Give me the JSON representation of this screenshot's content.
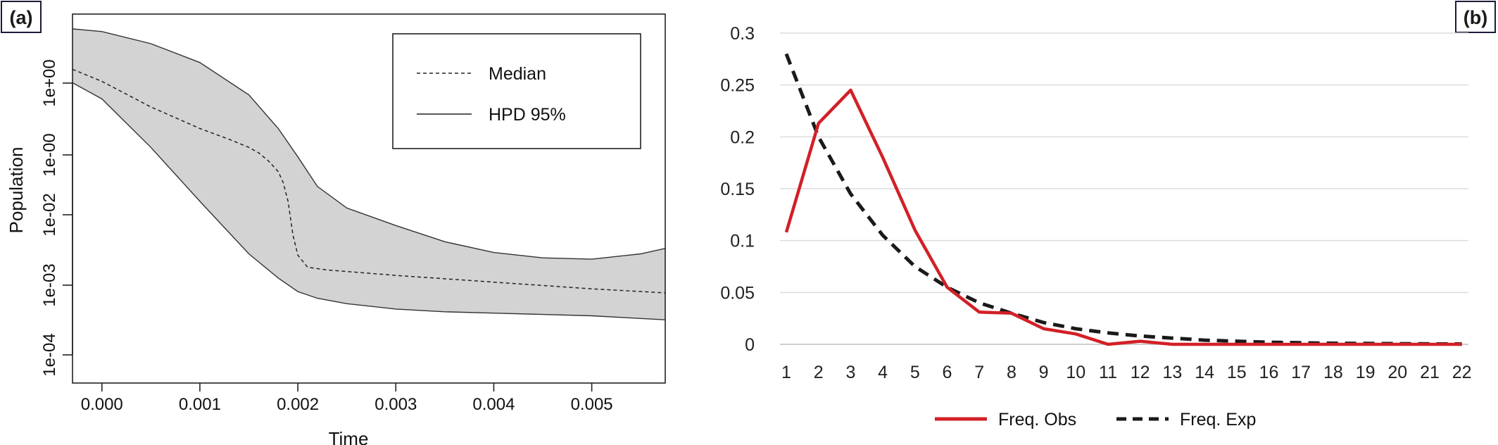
{
  "chart_data": [
    {
      "panel": "(a)",
      "type": "area",
      "xlabel": "Time",
      "ylabel": "Population",
      "x_ticks": [
        "0.000",
        "0.001",
        "0.002",
        "0.003",
        "0.004",
        "0.005"
      ],
      "x_tick_values": [
        0,
        0.001,
        0.002,
        0.003,
        0.004,
        0.005
      ],
      "y_ticks": [
        "1e-04",
        "1e-03",
        "1e-02",
        "1e-00",
        "1e+00"
      ],
      "xlim": [
        -0.0003,
        0.00575
      ],
      "legend": {
        "position": "top-right",
        "items": [
          "Median",
          "HPD 95%"
        ]
      },
      "series": [
        {
          "name": "Median",
          "style": "dashed",
          "x": [
            -0.0003,
            0.0,
            0.0005,
            0.001,
            0.0013,
            0.0015,
            0.0016,
            0.0017,
            0.0018,
            0.00185,
            0.0019,
            0.00195,
            0.002,
            0.0021,
            0.0023,
            0.003,
            0.004,
            0.005,
            0.00575
          ],
          "y": [
            1.08,
            0.99,
            0.8,
            0.64,
            0.56,
            0.5,
            0.46,
            0.4,
            0.32,
            0.24,
            0.1,
            -0.15,
            -0.3,
            -0.39,
            -0.41,
            -0.45,
            -0.5,
            -0.55,
            -0.58
          ]
        },
        {
          "name": "HPD 95%",
          "style": "band",
          "x": [
            -0.0003,
            0.0,
            0.0005,
            0.001,
            0.0015,
            0.0018,
            0.002,
            0.0022,
            0.0025,
            0.003,
            0.0035,
            0.004,
            0.0045,
            0.005,
            0.0055,
            0.00575
          ],
          "upper": [
            1.38,
            1.36,
            1.27,
            1.13,
            0.89,
            0.64,
            0.43,
            0.21,
            0.05,
            -0.08,
            -0.2,
            -0.28,
            -0.32,
            -0.33,
            -0.29,
            -0.25
          ],
          "lower": [
            0.98,
            0.86,
            0.5,
            0.1,
            -0.29,
            -0.47,
            -0.57,
            -0.62,
            -0.66,
            -0.7,
            -0.72,
            -0.73,
            -0.74,
            -0.75,
            -0.77,
            -0.78
          ]
        }
      ]
    },
    {
      "panel": "(b)",
      "type": "line",
      "categories": [
        "1",
        "2",
        "3",
        "4",
        "5",
        "6",
        "7",
        "8",
        "9",
        "10",
        "11",
        "12",
        "13",
        "14",
        "15",
        "16",
        "17",
        "18",
        "19",
        "20",
        "21",
        "22"
      ],
      "ylim": [
        0,
        0.3
      ],
      "y_ticks": [
        "0",
        "0.05",
        "0.1",
        "0.15",
        "0.2",
        "0.25",
        "0.3"
      ],
      "y_tick_values": [
        0,
        0.05,
        0.1,
        0.15,
        0.2,
        0.25,
        0.3
      ],
      "grid": "horizontal",
      "legend": {
        "position": "bottom"
      },
      "colors": {
        "obs": "#d22027",
        "exp": "#1a1a1a"
      },
      "series": [
        {
          "name": "Freq. Obs",
          "style": "solid",
          "values": [
            0.108,
            0.213,
            0.245,
            0.18,
            0.11,
            0.055,
            0.031,
            0.03,
            0.015,
            0.01,
            0.0,
            0.003,
            0.0,
            0.0,
            0.0,
            0.0,
            0.0,
            0.0,
            0.0,
            0.0,
            0.0,
            0.0
          ]
        },
        {
          "name": "Freq. Exp",
          "style": "dashed",
          "values": [
            0.28,
            0.2,
            0.145,
            0.105,
            0.075,
            0.055,
            0.04,
            0.03,
            0.021,
            0.015,
            0.011,
            0.008,
            0.006,
            0.004,
            0.003,
            0.002,
            0.0015,
            0.001,
            0.0008,
            0.0006,
            0.0004,
            0.0003
          ]
        }
      ]
    }
  ]
}
